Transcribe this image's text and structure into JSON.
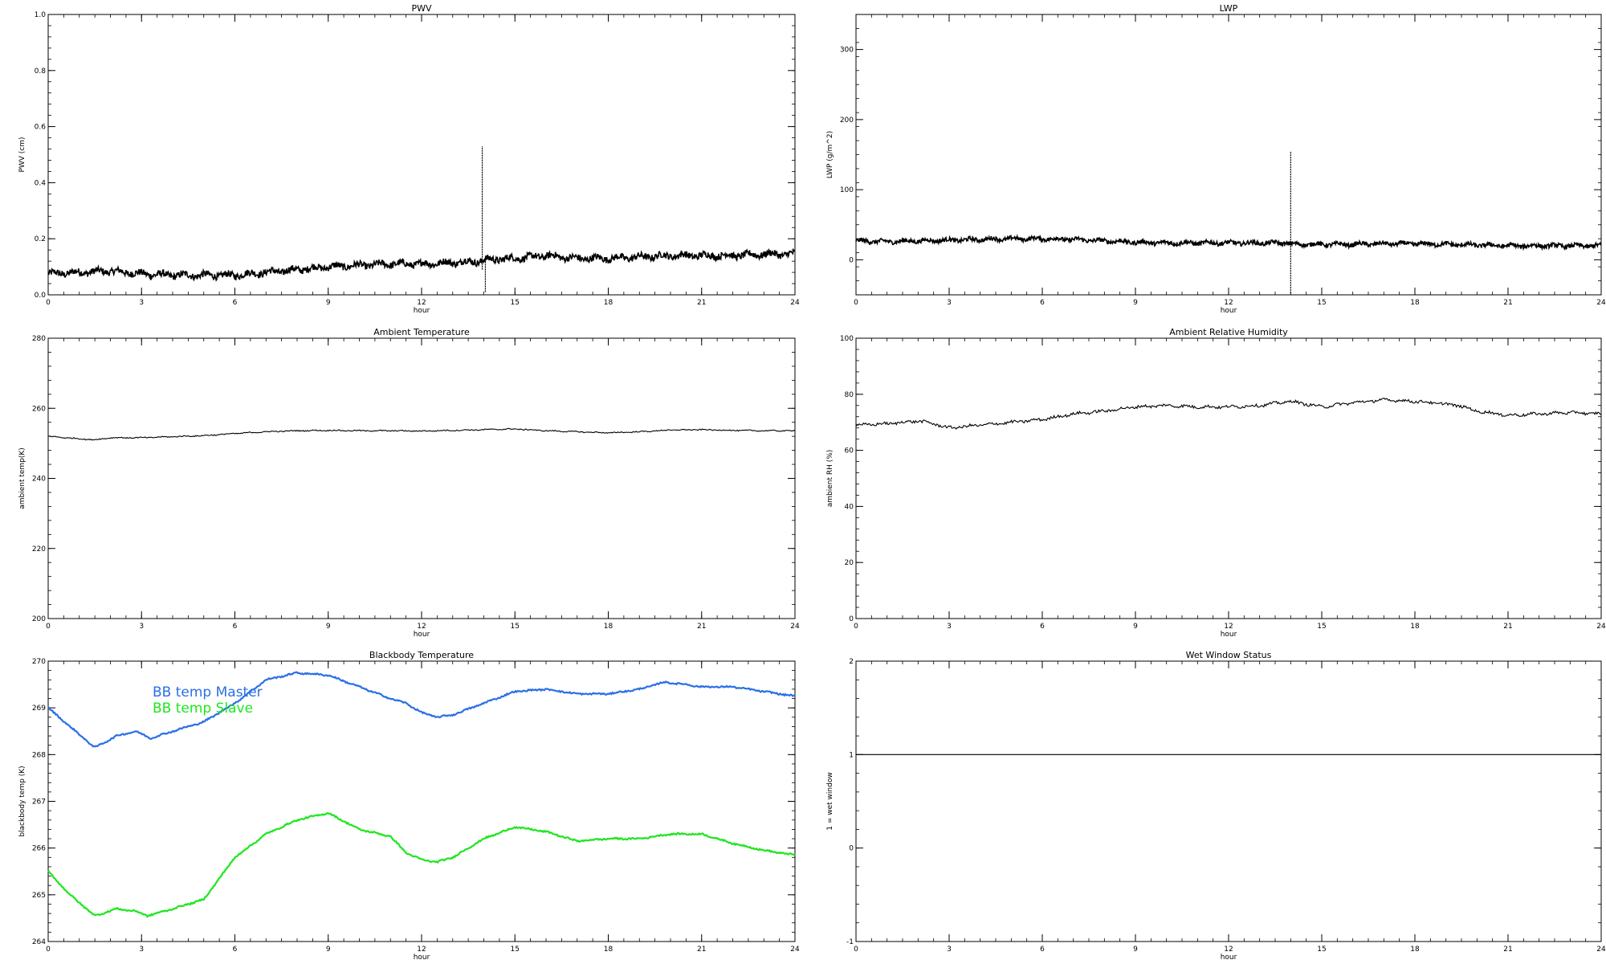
{
  "chart_data": [
    {
      "id": "pwv",
      "type": "line",
      "title": "PWV",
      "xlabel": "hour",
      "ylabel": "PWV (cm)",
      "xlim": [
        0,
        24
      ],
      "ylim": [
        0.0,
        1.0
      ],
      "xticks": [
        0,
        3,
        6,
        9,
        12,
        15,
        18,
        21,
        24
      ],
      "xtick_labels": [
        "0",
        "3",
        "6",
        "9",
        "12",
        "15",
        "18",
        "21",
        "24"
      ],
      "yticks": [
        0.0,
        0.2,
        0.4,
        0.6,
        0.8,
        1.0
      ],
      "ytick_labels": [
        "0.0",
        "0.2",
        "0.4",
        "0.6",
        "0.8",
        "1.0"
      ],
      "style": "noisy",
      "noise": 0.012,
      "series": [
        {
          "name": "",
          "color": "#000000",
          "x": [
            0,
            1,
            2,
            3,
            4,
            5,
            6,
            7,
            8,
            9,
            10,
            11,
            12,
            13,
            13.9,
            14.05,
            15,
            16,
            17,
            18,
            19,
            20,
            21,
            22,
            23,
            24
          ],
          "y": [
            0.075,
            0.08,
            0.085,
            0.075,
            0.07,
            0.07,
            0.07,
            0.08,
            0.09,
            0.1,
            0.105,
            0.11,
            0.11,
            0.115,
            0.12,
            0.125,
            0.13,
            0.14,
            0.13,
            0.13,
            0.135,
            0.14,
            0.14,
            0.14,
            0.145,
            0.145
          ],
          "spikes": [
            {
              "x": 13.95,
              "ymin": 0.09,
              "ymax": 0.53
            },
            {
              "x": 14.05,
              "ymin": 0.01,
              "ymax": 0.14
            }
          ]
        }
      ]
    },
    {
      "id": "lwp",
      "type": "line",
      "title": "LWP",
      "xlabel": "hour",
      "ylabel": "LWP (g/m^2)",
      "xlim": [
        0,
        24
      ],
      "ylim": [
        -50,
        350
      ],
      "xticks": [
        0,
        3,
        6,
        9,
        12,
        15,
        18,
        21,
        24
      ],
      "xtick_labels": [
        "0",
        "3",
        "6",
        "9",
        "12",
        "15",
        "18",
        "21",
        "24"
      ],
      "yticks": [
        0,
        100,
        200,
        300
      ],
      "ytick_labels": [
        "0",
        "100",
        "200",
        "300"
      ],
      "style": "noisy",
      "noise": 3,
      "series": [
        {
          "name": "",
          "color": "#000000",
          "x": [
            0,
            1,
            2,
            3,
            4,
            5,
            6,
            7,
            8,
            9,
            10,
            11,
            12,
            13,
            13.9,
            14.1,
            15,
            16,
            17,
            18,
            19,
            20,
            21,
            22,
            23,
            24
          ],
          "y": [
            27,
            26,
            27,
            28,
            29,
            30,
            30,
            29,
            27,
            25,
            24,
            24,
            24,
            24,
            24,
            22,
            22,
            22,
            23,
            23,
            22,
            21,
            20,
            20,
            20,
            20
          ],
          "spikes": [
            {
              "x": 14.0,
              "ymin": -48,
              "ymax": 155
            }
          ]
        }
      ]
    },
    {
      "id": "ambient-temperature",
      "type": "line",
      "title": "Ambient Temperature",
      "xlabel": "hour",
      "ylabel": "ambient temp(K)",
      "xlim": [
        0,
        24
      ],
      "ylim": [
        200,
        280
      ],
      "xticks": [
        0,
        3,
        6,
        9,
        12,
        15,
        18,
        21,
        24
      ],
      "xtick_labels": [
        "0",
        "3",
        "6",
        "9",
        "12",
        "15",
        "18",
        "21",
        "24"
      ],
      "yticks": [
        200,
        220,
        240,
        260,
        280
      ],
      "ytick_labels": [
        "200",
        "220",
        "240",
        "260",
        "280"
      ],
      "style": "smooth",
      "noise": 0.15,
      "series": [
        {
          "name": "",
          "color": "#000000",
          "x": [
            0,
            1,
            1.5,
            2,
            3,
            4,
            5,
            6,
            7,
            8,
            9,
            10,
            11,
            12,
            13,
            14,
            15,
            16,
            17,
            18,
            19,
            20,
            21,
            22,
            23,
            24
          ],
          "y": [
            252,
            251.3,
            251.0,
            251.6,
            251.6,
            251.9,
            252.2,
            252.8,
            253.3,
            253.6,
            253.7,
            253.6,
            253.6,
            253.5,
            253.7,
            253.9,
            254.1,
            253.6,
            253.3,
            253.0,
            253.3,
            253.8,
            253.9,
            253.7,
            253.6,
            253.6
          ]
        }
      ]
    },
    {
      "id": "ambient-relative-humidity",
      "type": "line",
      "title": "Ambient Relative Humidity",
      "xlabel": "hour",
      "ylabel": "ambient RH (%)",
      "xlim": [
        0,
        24
      ],
      "ylim": [
        0,
        100
      ],
      "xticks": [
        0,
        3,
        6,
        9,
        12,
        15,
        18,
        21,
        24
      ],
      "xtick_labels": [
        "0",
        "3",
        "6",
        "9",
        "12",
        "15",
        "18",
        "21",
        "24"
      ],
      "yticks": [
        0,
        20,
        40,
        60,
        80,
        100
      ],
      "ytick_labels": [
        "0",
        "20",
        "40",
        "60",
        "80",
        "100"
      ],
      "style": "smooth",
      "noise": 0.5,
      "series": [
        {
          "name": "",
          "color": "#000000",
          "x": [
            0,
            1,
            2,
            2.5,
            3,
            4,
            5,
            6,
            7,
            8,
            9,
            10,
            11,
            12,
            13,
            14,
            15,
            16,
            17,
            18,
            19,
            19.4,
            20,
            21,
            22,
            23,
            24
          ],
          "y": [
            69,
            69.5,
            70.5,
            69.5,
            68,
            69,
            70,
            71,
            73,
            74,
            75.5,
            76,
            75.5,
            75.5,
            76,
            77.5,
            75.5,
            77,
            78,
            77.5,
            76.5,
            76,
            74,
            72.5,
            73,
            73.5,
            73
          ]
        }
      ]
    },
    {
      "id": "blackbody-temperature",
      "type": "line",
      "title": "Blackbody Temperature",
      "xlabel": "hour",
      "ylabel": "blackbody temp (K)",
      "xlim": [
        0,
        24
      ],
      "ylim": [
        264,
        270
      ],
      "xticks": [
        0,
        3,
        6,
        9,
        12,
        15,
        18,
        21,
        24
      ],
      "xtick_labels": [
        "0",
        "3",
        "6",
        "9",
        "12",
        "15",
        "18",
        "21",
        "24"
      ],
      "yticks": [
        264,
        265,
        266,
        267,
        268,
        269,
        270
      ],
      "ytick_labels": [
        "264",
        "265",
        "266",
        "267",
        "268",
        "269",
        "270"
      ],
      "legend_placement": "top-left",
      "style": "smooth",
      "noise": 0.015,
      "series": [
        {
          "name": "BB temp Master",
          "color": "#2a6fe6",
          "x": [
            0,
            0.7,
            1.5,
            2.2,
            2.8,
            3.3,
            4,
            5,
            6,
            7,
            8,
            9,
            10,
            11,
            11.5,
            12,
            12.5,
            13,
            14,
            15,
            16,
            17,
            18,
            19,
            19.8,
            20.5,
            21,
            22,
            23,
            24
          ],
          "y": [
            269.0,
            268.6,
            268.15,
            268.4,
            268.5,
            268.35,
            268.5,
            268.7,
            269.1,
            269.6,
            269.75,
            269.7,
            269.45,
            269.2,
            269.1,
            268.9,
            268.8,
            268.85,
            269.1,
            269.35,
            269.4,
            269.3,
            269.3,
            269.4,
            269.55,
            269.5,
            269.45,
            269.45,
            269.35,
            269.25
          ]
        },
        {
          "name": "BB temp Slave",
          "color": "#1ee61e",
          "x": [
            0,
            0.7,
            1.5,
            2.2,
            2.8,
            3.2,
            4,
            5,
            6,
            7,
            8,
            9,
            10,
            11,
            11.5,
            12,
            12.5,
            13,
            14,
            15,
            16,
            17,
            18,
            19,
            20,
            21,
            22,
            23,
            24
          ],
          "y": [
            265.5,
            265.0,
            264.55,
            264.7,
            264.65,
            264.55,
            264.7,
            264.9,
            265.8,
            266.3,
            266.6,
            266.75,
            266.4,
            266.25,
            265.9,
            265.75,
            265.7,
            265.8,
            266.2,
            266.45,
            266.35,
            266.15,
            266.2,
            266.2,
            266.3,
            266.3,
            266.1,
            265.95,
            265.85
          ]
        }
      ]
    },
    {
      "id": "wet-window-status",
      "type": "line",
      "title": "Wet Window Status",
      "xlabel": "hour",
      "ylabel": "1 = wet window",
      "xlim": [
        0,
        24
      ],
      "ylim": [
        -1,
        2
      ],
      "xticks": [
        0,
        3,
        6,
        9,
        12,
        15,
        18,
        21,
        24
      ],
      "xtick_labels": [
        "0",
        "3",
        "6",
        "9",
        "12",
        "15",
        "18",
        "21",
        "24"
      ],
      "yticks": [
        -1,
        0,
        1,
        2
      ],
      "ytick_labels": [
        "-1",
        "0",
        "1",
        "2"
      ],
      "style": "smooth",
      "noise": 0,
      "series": [
        {
          "name": "",
          "color": "#000000",
          "x": [
            0,
            24
          ],
          "y": [
            1,
            1
          ]
        }
      ]
    }
  ]
}
